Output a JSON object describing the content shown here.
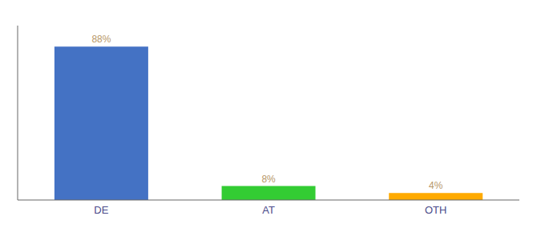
{
  "chart_data": {
    "type": "bar",
    "categories": [
      "DE",
      "AT",
      "OTH"
    ],
    "values": [
      88,
      8,
      4
    ],
    "value_labels": [
      "88%",
      "8%",
      "4%"
    ],
    "colors": [
      "#4472c4",
      "#33cc33",
      "#ffaa00"
    ],
    "ylim": [
      0,
      100
    ],
    "grid": false,
    "data_labels": true,
    "tick_labels": "x"
  }
}
